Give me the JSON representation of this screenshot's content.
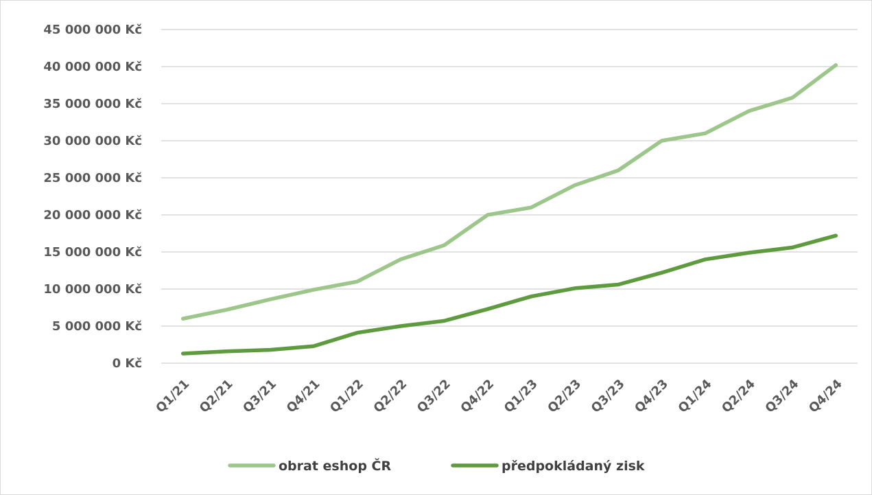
{
  "chart_data": {
    "type": "line",
    "title": "",
    "xlabel": "",
    "ylabel": "",
    "categories": [
      "Q1/21",
      "Q2/21",
      "Q3/21",
      "Q4/21",
      "Q1/22",
      "Q2/22",
      "Q3/22",
      "Q4/22",
      "Q1/23",
      "Q2/23",
      "Q3/23",
      "Q4/23",
      "Q1/24",
      "Q2/24",
      "Q3/24",
      "Q4/24"
    ],
    "y_tick_labels": [
      "0 Kč",
      "5 000 000 Kč",
      "10 000 000 Kč",
      "15 000 000 Kč",
      "20 000 000 Kč",
      "25 000 000 Kč",
      "30 000 000 Kč",
      "35 000 000 Kč",
      "40 000 000 Kč",
      "45 000 000 Kč"
    ],
    "y_ticks": [
      0,
      5000000,
      10000000,
      15000000,
      20000000,
      25000000,
      30000000,
      35000000,
      40000000,
      45000000
    ],
    "ylim": [
      0,
      45000000
    ],
    "grid": true,
    "legend_position": "bottom",
    "series": [
      {
        "name": "obrat eshop ČR",
        "color": "#9cc68a",
        "values": [
          6000000,
          7200000,
          8600000,
          9900000,
          11000000,
          14000000,
          15900000,
          20000000,
          21000000,
          24000000,
          26000000,
          30000000,
          31000000,
          34000000,
          35800000,
          40200000
        ]
      },
      {
        "name": "předpokládaný zisk",
        "color": "#5e9a3e",
        "values": [
          1300000,
          1600000,
          1800000,
          2300000,
          4100000,
          5000000,
          5700000,
          7300000,
          9000000,
          10100000,
          10600000,
          12200000,
          14000000,
          14900000,
          15600000,
          17200000
        ]
      }
    ]
  }
}
